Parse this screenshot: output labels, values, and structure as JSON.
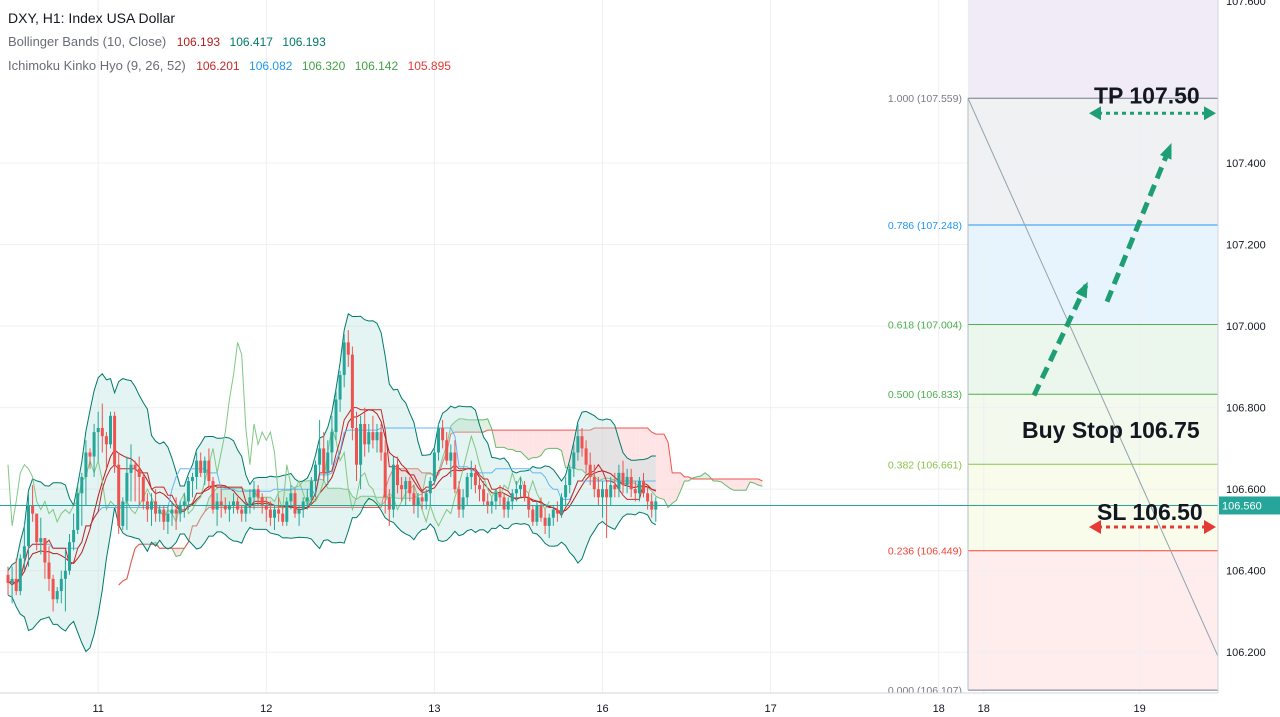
{
  "chart_data": {
    "type": "candlestick",
    "title": "DXY, H1: Index USA Dollar",
    "indicators": [
      {
        "name": "Bollinger Bands (10, Close)",
        "values": [
          "106.193",
          "106.417",
          "106.193"
        ],
        "colors": [
          "#b71c1c",
          "#00796b",
          "#00796b"
        ]
      },
      {
        "name": "Ichimoku Kinko Hyo (9, 26, 52)",
        "values": [
          "106.201",
          "106.082",
          "106.320",
          "106.142",
          "105.895"
        ],
        "colors": [
          "#c62828",
          "#2196f3",
          "#43a047",
          "#43a047",
          "#e53935"
        ]
      }
    ],
    "y_axis": {
      "ylim": [
        106.1,
        107.8
      ],
      "ticks": [
        "107.400",
        "107.200",
        "107.000",
        "106.800",
        "106.600",
        "106.400",
        "106.200"
      ],
      "top_partial_tick": "107.600",
      "ticks_values": [
        107.4,
        107.2,
        107.0,
        106.8,
        106.6,
        106.4,
        106.2
      ],
      "current_price_label": "106.560",
      "current_price": 106.56
    },
    "x_axis": {
      "labels": [
        "11",
        "12",
        "13",
        "16",
        "17",
        "18",
        "18",
        "19"
      ],
      "label_bars": [
        22,
        63,
        104,
        145,
        186,
        227,
        238,
        276
      ]
    },
    "fibonacci": [
      {
        "label": "1.000 (107.559)",
        "price": 107.559,
        "color": "#787b86"
      },
      {
        "label": "0.786 (107.248)",
        "price": 107.248,
        "color": "#2196f3"
      },
      {
        "label": "0.618 (107.004)",
        "price": 107.004,
        "color": "#4caf50"
      },
      {
        "label": "0.500 (106.833)",
        "price": 106.833,
        "color": "#4caf50"
      },
      {
        "label": "0.382 (106.661)",
        "price": 106.661,
        "color": "#8bc34a"
      },
      {
        "label": "0.236 (106.449)",
        "price": 106.449,
        "color": "#f44336"
      },
      {
        "label": "0.000 (106.107)",
        "price": 106.107,
        "color": "#787b86"
      }
    ],
    "annotations": {
      "tp": {
        "text": "TP 107.50",
        "price": 107.5
      },
      "buy_stop": {
        "text": "Buy Stop 106.75",
        "price": 106.75
      },
      "sl": {
        "text": "SL 106.50",
        "price": 106.5
      }
    },
    "candles": [
      [
        106.39,
        106.41,
        106.34,
        106.37
      ],
      [
        106.37,
        106.41,
        106.32,
        106.38
      ],
      [
        106.38,
        106.43,
        106.34,
        106.35
      ],
      [
        106.35,
        106.44,
        106.34,
        106.43
      ],
      [
        106.43,
        106.52,
        106.4,
        106.46
      ],
      [
        106.46,
        106.59,
        106.41,
        106.56
      ],
      [
        106.56,
        106.61,
        106.52,
        106.54
      ],
      [
        106.54,
        106.53,
        106.45,
        106.47
      ],
      [
        106.47,
        106.53,
        106.44,
        106.48
      ],
      [
        106.48,
        106.48,
        106.38,
        106.42
      ],
      [
        106.42,
        106.46,
        106.35,
        106.38
      ],
      [
        106.38,
        106.39,
        106.3,
        106.33
      ],
      [
        106.33,
        106.36,
        106.32,
        106.35
      ],
      [
        106.35,
        106.4,
        106.32,
        106.38
      ],
      [
        106.38,
        106.45,
        106.3,
        106.4
      ],
      [
        106.4,
        106.49,
        106.39,
        106.47
      ],
      [
        106.47,
        106.54,
        106.45,
        106.5
      ],
      [
        106.5,
        106.61,
        106.49,
        106.59
      ],
      [
        106.59,
        106.64,
        106.51,
        106.63
      ],
      [
        106.63,
        106.72,
        106.56,
        106.69
      ],
      [
        106.69,
        106.7,
        106.65,
        106.68
      ],
      [
        106.68,
        106.76,
        106.63,
        106.74
      ],
      [
        106.74,
        106.79,
        106.67,
        106.75
      ],
      [
        106.75,
        106.81,
        106.69,
        106.73
      ],
      [
        106.73,
        106.74,
        106.65,
        106.71
      ],
      [
        106.71,
        106.79,
        106.7,
        106.78
      ],
      [
        106.78,
        106.79,
        106.64,
        106.66
      ],
      [
        106.66,
        106.69,
        106.49,
        106.51
      ],
      [
        106.51,
        106.58,
        106.5,
        106.57
      ],
      [
        106.57,
        106.68,
        106.5,
        106.64
      ],
      [
        106.64,
        106.71,
        106.57,
        106.66
      ],
      [
        106.66,
        106.67,
        106.57,
        106.65
      ],
      [
        106.65,
        106.68,
        106.56,
        106.63
      ],
      [
        106.63,
        106.64,
        106.55,
        106.57
      ],
      [
        106.57,
        106.59,
        106.52,
        106.55
      ],
      [
        106.55,
        106.59,
        106.51,
        106.57
      ],
      [
        106.57,
        106.6,
        106.52,
        106.54
      ],
      [
        106.54,
        106.56,
        106.52,
        106.55
      ],
      [
        106.55,
        106.56,
        106.5,
        106.52
      ],
      [
        106.52,
        106.56,
        106.49,
        106.54
      ],
      [
        106.54,
        106.57,
        106.51,
        106.55
      ],
      [
        106.55,
        106.58,
        106.5,
        106.54
      ],
      [
        106.54,
        106.57,
        106.52,
        106.56
      ],
      [
        106.56,
        106.59,
        106.53,
        106.57
      ],
      [
        106.57,
        106.63,
        106.55,
        106.62
      ],
      [
        106.62,
        106.64,
        106.58,
        106.63
      ],
      [
        106.63,
        106.69,
        106.6,
        106.67
      ],
      [
        106.67,
        106.69,
        106.63,
        106.64
      ],
      [
        106.64,
        106.68,
        106.61,
        106.67
      ],
      [
        106.67,
        106.7,
        106.6,
        106.62
      ],
      [
        106.62,
        106.63,
        106.54,
        106.55
      ],
      [
        106.55,
        106.59,
        106.51,
        106.57
      ],
      [
        106.57,
        106.6,
        106.53,
        106.56
      ],
      [
        106.56,
        106.58,
        106.54,
        106.55
      ],
      [
        106.55,
        106.57,
        106.52,
        106.56
      ],
      [
        106.56,
        106.59,
        106.54,
        106.57
      ],
      [
        106.57,
        106.58,
        106.54,
        106.55
      ],
      [
        106.55,
        106.56,
        106.52,
        106.54
      ],
      [
        106.54,
        106.57,
        106.52,
        106.56
      ],
      [
        106.56,
        106.6,
        106.54,
        106.58
      ],
      [
        106.58,
        106.62,
        106.55,
        106.6
      ],
      [
        106.6,
        106.61,
        106.56,
        106.58
      ],
      [
        106.58,
        106.59,
        106.54,
        106.56
      ],
      [
        106.56,
        106.58,
        106.52,
        106.55
      ],
      [
        106.55,
        106.57,
        106.51,
        106.53
      ],
      [
        106.53,
        106.56,
        106.5,
        106.55
      ],
      [
        106.55,
        106.58,
        106.52,
        106.54
      ],
      [
        106.54,
        106.56,
        106.51,
        106.52
      ],
      [
        106.52,
        106.58,
        106.51,
        106.57
      ],
      [
        106.57,
        106.61,
        106.55,
        106.59
      ],
      [
        106.59,
        106.6,
        106.53,
        106.54
      ],
      [
        106.54,
        106.56,
        106.51,
        106.55
      ],
      [
        106.55,
        106.58,
        106.53,
        106.57
      ],
      [
        106.57,
        106.6,
        106.55,
        106.58
      ],
      [
        106.58,
        106.63,
        106.56,
        106.62
      ],
      [
        106.62,
        106.67,
        106.58,
        106.66
      ],
      [
        106.66,
        106.77,
        106.64,
        106.7
      ],
      [
        106.7,
        106.74,
        106.62,
        106.64
      ],
      [
        106.64,
        106.72,
        106.61,
        106.69
      ],
      [
        106.69,
        106.78,
        106.66,
        106.74
      ],
      [
        106.74,
        106.84,
        106.72,
        106.82
      ],
      [
        106.82,
        106.89,
        106.79,
        106.88
      ],
      [
        106.88,
        106.98,
        106.85,
        106.96
      ],
      [
        106.96,
        106.99,
        106.9,
        106.93
      ],
      [
        106.93,
        106.95,
        106.72,
        106.75
      ],
      [
        106.75,
        106.79,
        106.62,
        106.66
      ],
      [
        106.66,
        106.78,
        106.6,
        106.76
      ],
      [
        106.76,
        106.8,
        106.68,
        106.71
      ],
      [
        106.71,
        106.76,
        106.69,
        106.74
      ],
      [
        106.74,
        106.78,
        106.7,
        106.72
      ],
      [
        106.72,
        106.76,
        106.69,
        106.74
      ],
      [
        106.74,
        106.76,
        106.67,
        106.69
      ],
      [
        106.69,
        106.72,
        106.54,
        106.58
      ],
      [
        106.58,
        106.6,
        106.51,
        106.55
      ],
      [
        106.55,
        106.68,
        106.53,
        106.66
      ],
      [
        106.66,
        106.68,
        106.59,
        106.61
      ],
      [
        106.61,
        106.63,
        106.57,
        106.6
      ],
      [
        106.6,
        106.63,
        106.56,
        106.62
      ],
      [
        106.62,
        106.63,
        106.57,
        106.59
      ],
      [
        106.59,
        106.61,
        106.54,
        106.56
      ],
      [
        106.56,
        106.59,
        106.53,
        106.58
      ],
      [
        106.58,
        106.6,
        106.55,
        106.57
      ],
      [
        106.57,
        106.6,
        106.55,
        106.59
      ],
      [
        106.59,
        106.63,
        106.56,
        106.62
      ],
      [
        106.62,
        106.7,
        106.61,
        106.69
      ],
      [
        106.69,
        106.76,
        106.67,
        106.75
      ],
      [
        106.75,
        106.77,
        106.7,
        106.72
      ],
      [
        106.72,
        106.74,
        106.66,
        106.67
      ],
      [
        106.67,
        106.71,
        106.63,
        106.69
      ],
      [
        106.69,
        106.72,
        106.59,
        106.6
      ],
      [
        106.6,
        106.62,
        106.53,
        106.55
      ],
      [
        106.55,
        106.6,
        106.53,
        106.58
      ],
      [
        106.58,
        106.64,
        106.56,
        106.63
      ],
      [
        106.63,
        106.67,
        106.6,
        106.64
      ],
      [
        106.64,
        106.66,
        106.59,
        106.61
      ],
      [
        106.61,
        106.63,
        106.57,
        106.6
      ],
      [
        106.6,
        106.62,
        106.56,
        106.57
      ],
      [
        106.57,
        106.59,
        106.54,
        106.56
      ],
      [
        106.56,
        106.58,
        106.54,
        106.57
      ],
      [
        106.57,
        106.6,
        106.55,
        106.59
      ],
      [
        106.59,
        106.61,
        106.56,
        106.58
      ],
      [
        106.58,
        106.59,
        106.53,
        106.55
      ],
      [
        106.55,
        106.58,
        106.53,
        106.57
      ],
      [
        106.57,
        106.6,
        106.55,
        106.59
      ],
      [
        106.59,
        106.62,
        106.57,
        106.6
      ],
      [
        106.6,
        106.63,
        106.58,
        106.61
      ],
      [
        106.61,
        106.62,
        106.57,
        106.58
      ],
      [
        106.58,
        106.59,
        106.53,
        106.55
      ],
      [
        106.55,
        106.56,
        106.51,
        106.52
      ],
      [
        106.52,
        106.57,
        106.51,
        106.56
      ],
      [
        106.56,
        106.58,
        106.52,
        106.53
      ],
      [
        106.53,
        106.55,
        106.49,
        106.51
      ],
      [
        106.51,
        106.54,
        106.48,
        106.53
      ],
      [
        106.53,
        106.56,
        106.51,
        106.55
      ],
      [
        106.55,
        106.57,
        106.52,
        106.54
      ],
      [
        106.54,
        106.59,
        106.53,
        106.58
      ],
      [
        106.58,
        106.63,
        106.56,
        106.61
      ],
      [
        106.61,
        106.66,
        106.59,
        106.65
      ],
      [
        106.65,
        106.71,
        106.63,
        106.69
      ],
      [
        106.69,
        106.76,
        106.67,
        106.73
      ],
      [
        106.73,
        106.75,
        106.68,
        106.7
      ],
      [
        106.7,
        106.72,
        106.64,
        106.66
      ],
      [
        106.66,
        106.69,
        106.61,
        106.63
      ],
      [
        106.63,
        106.66,
        106.58,
        106.6
      ],
      [
        106.6,
        106.63,
        106.56,
        106.58
      ],
      [
        106.58,
        106.62,
        106.53,
        106.6
      ],
      [
        106.6,
        106.62,
        106.48,
        106.58
      ],
      [
        106.58,
        106.63,
        106.56,
        106.61
      ],
      [
        106.61,
        106.64,
        106.58,
        106.6
      ],
      [
        106.6,
        106.66,
        106.58,
        106.64
      ],
      [
        106.64,
        106.67,
        106.59,
        106.61
      ],
      [
        106.61,
        106.65,
        106.59,
        106.63
      ],
      [
        106.63,
        106.65,
        106.58,
        106.6
      ],
      [
        106.6,
        106.62,
        106.57,
        106.59
      ],
      [
        106.59,
        106.63,
        106.57,
        106.62
      ],
      [
        106.62,
        106.64,
        106.58,
        106.59
      ],
      [
        106.59,
        106.61,
        106.55,
        106.57
      ],
      [
        106.57,
        106.59,
        106.53,
        106.55
      ],
      [
        106.55,
        106.58,
        106.52,
        106.57
      ]
    ]
  }
}
